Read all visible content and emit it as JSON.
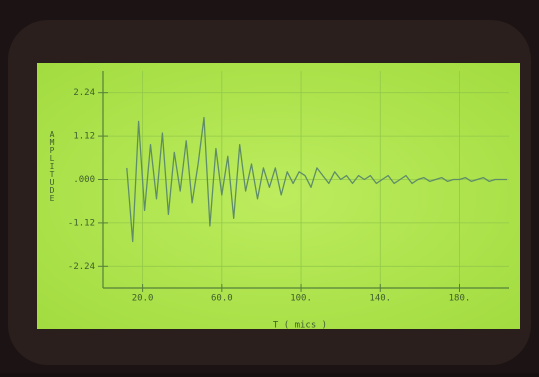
{
  "chart_data": {
    "type": "line",
    "x_label": "T ( mics )",
    "y_label": "AMPLITUDE",
    "x": [
      12,
      15,
      18,
      21,
      24,
      27,
      30,
      33,
      36,
      39,
      42,
      45,
      48,
      51,
      54,
      57,
      60,
      63,
      66,
      69,
      72,
      75,
      78,
      81,
      84,
      87,
      90,
      93,
      96,
      99,
      102,
      105,
      108,
      111,
      114,
      117,
      120,
      123,
      126,
      129,
      132,
      135,
      138,
      141,
      144,
      147,
      150,
      153,
      156,
      159,
      162,
      165,
      168,
      171,
      174,
      177,
      180,
      183,
      186,
      189,
      192,
      195,
      198,
      201,
      204
    ],
    "values": [
      0.3,
      -1.6,
      1.5,
      -0.8,
      0.9,
      -0.5,
      1.2,
      -0.9,
      0.7,
      -0.3,
      1.0,
      -0.6,
      0.4,
      1.6,
      -1.2,
      0.8,
      -0.4,
      0.6,
      -1.0,
      0.9,
      -0.3,
      0.4,
      -0.5,
      0.3,
      -0.2,
      0.3,
      -0.4,
      0.2,
      -0.1,
      0.2,
      0.1,
      -0.2,
      0.3,
      0.1,
      -0.1,
      0.2,
      0.0,
      0.1,
      -0.1,
      0.1,
      0.0,
      0.1,
      -0.1,
      0.0,
      0.1,
      -0.1,
      0.0,
      0.1,
      -0.1,
      0.0,
      0.05,
      -0.05,
      0.0,
      0.05,
      -0.05,
      0.0,
      0.0,
      0.05,
      -0.05,
      0.0,
      0.05,
      -0.05,
      0.0,
      0.0,
      0.0
    ],
    "color": "#5f8d6a",
    "xlim": [
      0,
      205
    ],
    "ylim": [
      -2.8,
      2.8
    ],
    "xticks": [
      {
        "value": 20,
        "label": "20.0"
      },
      {
        "value": 60,
        "label": "60.0"
      },
      {
        "value": 100,
        "label": "100."
      },
      {
        "value": 140,
        "label": "140."
      },
      {
        "value": 180,
        "label": "180."
      }
    ],
    "yticks": [
      2.24,
      1.12,
      {
        "value": 0,
        "label": ".000"
      },
      -1.12,
      -2.24
    ],
    "grid": true
  }
}
